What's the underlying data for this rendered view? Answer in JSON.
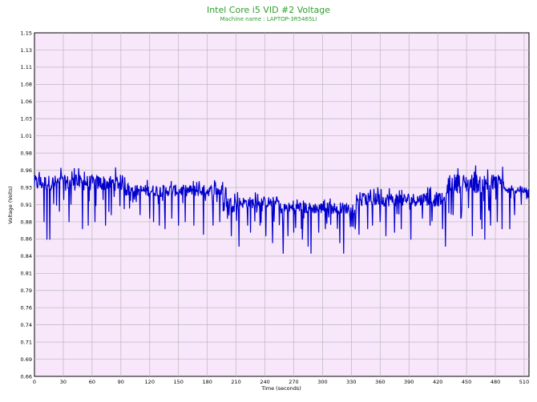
{
  "chart_data": {
    "type": "line",
    "title": "Intel Core i5 VID #2 Voltage",
    "subtitle": "Machine name : LAPTOP-3R5465LI",
    "xlabel": "Time (seconds)",
    "ylabel": "Voltage (Volts)",
    "xlim": [
      0,
      515
    ],
    "ylim": [
      0.66,
      1.15
    ],
    "xticks": [
      "0",
      "30",
      "60",
      "90",
      "120",
      "150",
      "180",
      "210",
      "240",
      "270",
      "300",
      "330",
      "360",
      "390",
      "420",
      "450",
      "480",
      "510"
    ],
    "yticks": [
      "0.66",
      "0.69",
      "0.71",
      "0.74",
      "0.76",
      "0.79",
      "0.81",
      "0.84",
      "0.86",
      "0.88",
      "0.91",
      "0.93",
      "0.96",
      "0.98",
      "1.01",
      "1.03",
      "1.06",
      "1.08",
      "1.11",
      "1.13",
      "1.15"
    ],
    "grid": true,
    "series": [
      {
        "name": "",
        "color": "#0000cc",
        "segments": [
          {
            "x0": 0,
            "x1": 95,
            "base": 0.936,
            "spread": 0.016,
            "dips": [
              [
                13,
                0.855
              ],
              [
                16,
                0.855
              ],
              [
                10,
                0.88
              ],
              [
                26,
                0.895
              ],
              [
                36,
                0.88
              ],
              [
                38,
                0.905
              ],
              [
                50,
                0.87
              ],
              [
                56,
                0.875
              ],
              [
                63,
                0.88
              ],
              [
                74,
                0.875
              ],
              [
                80,
                0.89
              ]
            ]
          },
          {
            "x0": 95,
            "x1": 200,
            "base": 0.925,
            "spread": 0.012,
            "dips": [
              [
                110,
                0.89
              ],
              [
                120,
                0.885
              ],
              [
                124,
                0.88
              ],
              [
                130,
                0.875
              ],
              [
                136,
                0.87
              ],
              [
                143,
                0.885
              ],
              [
                150,
                0.875
              ],
              [
                157,
                0.88
              ],
              [
                166,
                0.875
              ],
              [
                176,
                0.862
              ],
              [
                186,
                0.875
              ],
              [
                193,
                0.88
              ]
            ]
          },
          {
            "x0": 200,
            "x1": 255,
            "base": 0.908,
            "spread": 0.012,
            "dips": [
              [
                205,
                0.86
              ],
              [
                213,
                0.845
              ],
              [
                222,
                0.875
              ],
              [
                225,
                0.865
              ],
              [
                235,
                0.875
              ],
              [
                241,
                0.86
              ],
              [
                248,
                0.85
              ]
            ]
          },
          {
            "x0": 255,
            "x1": 335,
            "base": 0.9,
            "spread": 0.012,
            "dips": [
              [
                259,
                0.835
              ],
              [
                264,
                0.86
              ],
              [
                270,
                0.865
              ],
              [
                279,
                0.855
              ],
              [
                285,
                0.845
              ],
              [
                288,
                0.835
              ],
              [
                296,
                0.865
              ],
              [
                303,
                0.87
              ],
              [
                318,
                0.85
              ],
              [
                322,
                0.835
              ]
            ]
          },
          {
            "x0": 335,
            "x1": 430,
            "base": 0.912,
            "spread": 0.014,
            "dips": [
              [
                338,
                0.862
              ],
              [
                347,
                0.87
              ],
              [
                352,
                0.875
              ],
              [
                360,
                0.88
              ],
              [
                366,
                0.86
              ],
              [
                375,
                0.865
              ],
              [
                382,
                0.87
              ],
              [
                392,
                0.855
              ],
              [
                404,
                0.885
              ],
              [
                412,
                0.875
              ],
              [
                425,
                0.87
              ],
              [
                428,
                0.845
              ]
            ]
          },
          {
            "x0": 430,
            "x1": 490,
            "base": 0.935,
            "spread": 0.02,
            "dips": [
              [
                436,
                0.89
              ],
              [
                444,
                0.885
              ],
              [
                452,
                0.9
              ],
              [
                456,
                0.86
              ],
              [
                466,
                0.87
              ],
              [
                469,
                0.855
              ],
              [
                475,
                0.875
              ],
              [
                482,
                0.88
              ],
              [
                487,
                0.87
              ]
            ]
          },
          {
            "x0": 490,
            "x1": 515,
            "base": 0.925,
            "spread": 0.006,
            "dips": [
              [
                495,
                0.87
              ],
              [
                500,
                0.89
              ],
              [
                507,
                0.905
              ]
            ]
          }
        ]
      }
    ]
  }
}
